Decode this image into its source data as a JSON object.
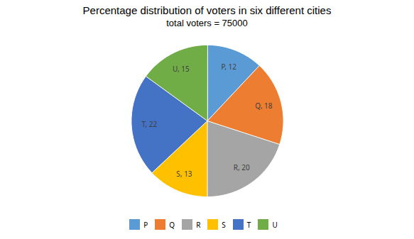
{
  "chart_data": {
    "type": "pie",
    "title": "Percentage distribution of voters in six different cities",
    "subtitle": "total voters = 75000",
    "categories": [
      "P",
      "Q",
      "R",
      "S",
      "T",
      "U"
    ],
    "values": [
      12,
      18,
      20,
      13,
      22,
      15
    ],
    "colors": [
      "#5B9BD5",
      "#ED7D31",
      "#A5A5A5",
      "#FFC000",
      "#4472C4",
      "#70AD47"
    ],
    "data_labels": true,
    "legend": "bottom"
  }
}
